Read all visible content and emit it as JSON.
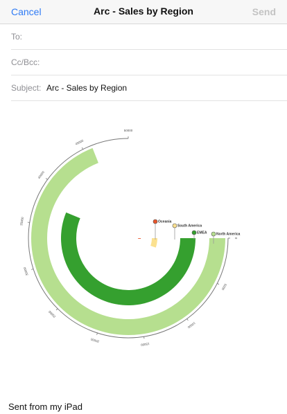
{
  "nav": {
    "cancel_label": "Cancel",
    "title": "Arc - Sales by Region",
    "send_label": "Send"
  },
  "fields": {
    "to_label": "To:",
    "cc_label": "Cc/Bcc:",
    "subject_label": "Subject:",
    "subject_value": "Arc - Sales by Region"
  },
  "chart_data": {
    "type": "arc",
    "title": "",
    "tick_labels": [
      "0",
      "5000",
      "10000",
      "15000",
      "20000",
      "25000",
      "30000",
      "35000",
      "40000",
      "45000",
      "50000"
    ],
    "series": [
      {
        "name": "North America",
        "value": 46000,
        "color": "#b6df8f"
      },
      {
        "name": "EMEA",
        "value": 37500,
        "color": "#35a02f"
      },
      {
        "name": "South America",
        "value": 3500,
        "color": "#fbe190"
      },
      {
        "name": "Oceania",
        "value": 600,
        "color": "#e8552b"
      }
    ],
    "scale_max": 50000
  },
  "body": {
    "signature": "Sent from my iPad"
  },
  "colors": {
    "accent": "#2f7bf5",
    "send_disabled": "#c3c3c3"
  }
}
